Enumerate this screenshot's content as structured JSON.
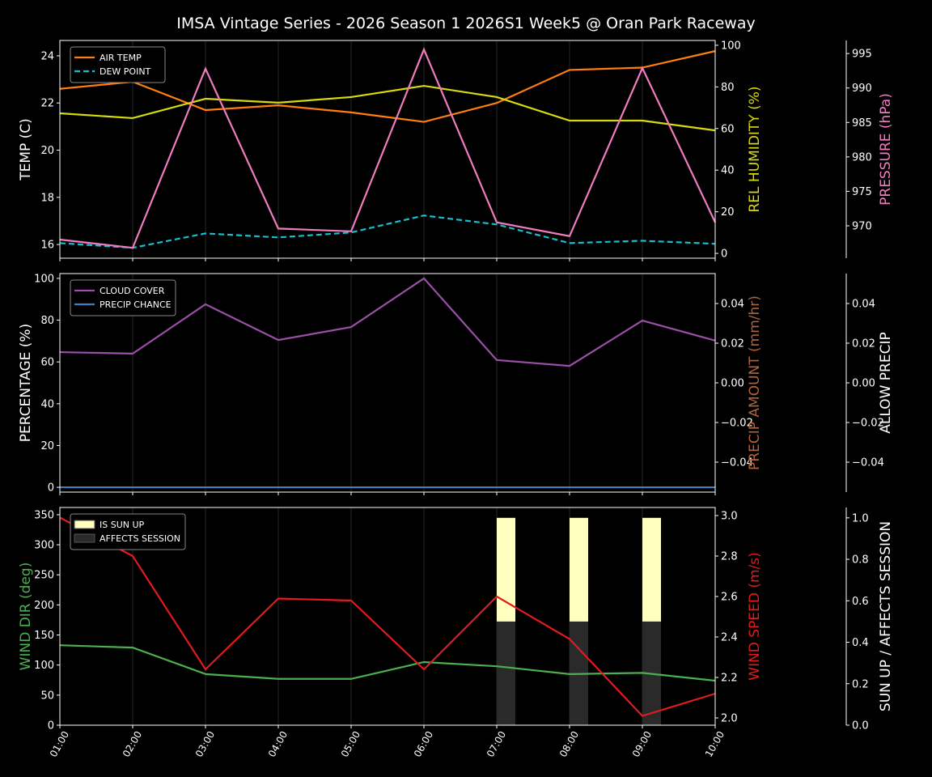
{
  "title": "IMSA Vintage Series - 2026 Season 1 2026S1 Week5 @ Oran Park Raceway",
  "chart_data": {
    "type": "line",
    "x": [
      "01:00",
      "02:00",
      "03:00",
      "04:00",
      "05:00",
      "06:00",
      "07:00",
      "08:00",
      "09:00",
      "10:00"
    ],
    "panels": [
      {
        "axes": [
          {
            "label": "TEMP (C)",
            "color": "#ffffff",
            "ylim": [
              15.42,
              24.65
            ],
            "ticks": [
              16,
              18,
              20,
              22,
              24
            ],
            "decimals": 0
          },
          {
            "label": "REL HUMIDITY (%)",
            "color": "#d9d90f",
            "ylim": [
              -2.3,
              102.3
            ],
            "ticks": [
              0,
              20,
              40,
              60,
              80,
              100
            ],
            "decimals": 0
          },
          {
            "label": "PRESSURE (hPa)",
            "color": "#f07cc0",
            "ylim": [
              965.3,
              996.9
            ],
            "ticks": [
              970,
              975,
              980,
              985,
              990,
              995
            ],
            "decimals": 0
          }
        ],
        "series": [
          {
            "name": "AIR TEMP",
            "axis": 0,
            "color": "#ff7f0e",
            "dash": false,
            "legend": true,
            "values": [
              22.6,
              22.9,
              21.7,
              21.9,
              21.6,
              21.2,
              22.0,
              23.4,
              23.5,
              24.2
            ]
          },
          {
            "name": "DEW POINT",
            "axis": 0,
            "color": "#17becf",
            "dash": true,
            "legend": true,
            "values": [
              16.06,
              15.86,
              16.47,
              16.3,
              16.51,
              17.23,
              16.85,
              16.06,
              16.16,
              16.03
            ]
          },
          {
            "name": "REL HUMIDITY",
            "axis": 1,
            "color": "#d9d90f",
            "dash": false,
            "legend": false,
            "values": [
              67.3,
              65.0,
              74.3,
              72.4,
              75.1,
              80.5,
              75.1,
              63.8,
              63.8,
              59.1
            ]
          },
          {
            "name": "PRESSURE",
            "axis": 2,
            "color": "#f07cc0",
            "dash": false,
            "legend": false,
            "values": [
              968.0,
              966.8,
              992.8,
              969.6,
              969.2,
              995.6,
              970.5,
              968.5,
              992.9,
              970.5
            ]
          }
        ]
      },
      {
        "axes": [
          {
            "label": "PERCENTAGE (%)",
            "color": "#ffffff",
            "ylim": [
              -2.3,
              102.3
            ],
            "ticks": [
              0,
              20,
              40,
              60,
              80,
              100
            ],
            "decimals": 0
          },
          {
            "label": "PRECIP AMOUNT (mm/hr)",
            "color": "#b0643a",
            "ylim": [
              -0.0551,
              0.0551
            ],
            "ticks": [
              -0.04,
              -0.02,
              0,
              0.02,
              0.04
            ],
            "decimals": 2
          },
          {
            "label": "ALLOW PRECIP",
            "color": "#ffffff",
            "ylim": [
              -0.0551,
              0.0551
            ],
            "ticks": [
              -0.04,
              -0.02,
              0,
              0.02,
              0.04
            ],
            "decimals": 2
          }
        ],
        "series": [
          {
            "name": "CLOUD COVER",
            "axis": 0,
            "color": "#9b4fa8",
            "dash": false,
            "legend": true,
            "values": [
              64.7,
              64.0,
              87.6,
              70.5,
              76.7,
              100,
              60.9,
              58.1,
              79.8,
              70.2
            ]
          },
          {
            "name": "PRECIP CHANCE",
            "axis": 0,
            "color": "#3d7fc0",
            "dash": false,
            "legend": true,
            "values": [
              0,
              0,
              0,
              0,
              0,
              0,
              0,
              0,
              0,
              0
            ]
          }
        ]
      },
      {
        "axes": [
          {
            "label": "WIND DIR (deg)",
            "color": "#4caf50",
            "ylim": [
              0,
              362
            ],
            "ticks": [
              0,
              50,
              100,
              150,
              200,
              250,
              300,
              350
            ],
            "decimals": 0
          },
          {
            "label": "WIND SPEED (m/s)",
            "color": "#e31a1c",
            "ylim": [
              1.964,
              3.04
            ],
            "ticks": [
              2.0,
              2.2,
              2.4,
              2.6,
              2.8,
              3.0
            ],
            "decimals": 1
          },
          {
            "label": "SUN UP / AFFECTS SESSION",
            "color": "#ffffff",
            "ylim": [
              0,
              1.05
            ],
            "ticks": [
              0,
              0.2,
              0.4,
              0.6,
              0.8,
              1.0
            ],
            "decimals": 1
          }
        ],
        "bars": [
          {
            "name": "IS SUN UP",
            "axis": 2,
            "color": "#ffffc0",
            "values": [
              0,
              0,
              0,
              0,
              0,
              0,
              1,
              1,
              1,
              0
            ]
          },
          {
            "name": "AFFECTS SESSION",
            "axis": 2,
            "color": "#2a2a2a",
            "values": [
              0,
              0,
              0,
              0,
              0,
              0,
              0.5,
              0.5,
              0.5,
              0
            ]
          }
        ],
        "series": [
          {
            "name": "WIND DIR",
            "axis": 0,
            "color": "#4caf50",
            "dash": false,
            "legend": false,
            "values": [
              133,
              129,
              85,
              77,
              77,
              105,
              98,
              85,
              87,
              74
            ]
          },
          {
            "name": "WIND SPEED",
            "axis": 1,
            "color": "#e31a1c",
            "dash": false,
            "legend": false,
            "values": [
              2.99,
              2.8,
              2.24,
              2.59,
              2.58,
              2.24,
              2.6,
              2.39,
              2.01,
              2.12
            ]
          }
        ]
      }
    ]
  }
}
